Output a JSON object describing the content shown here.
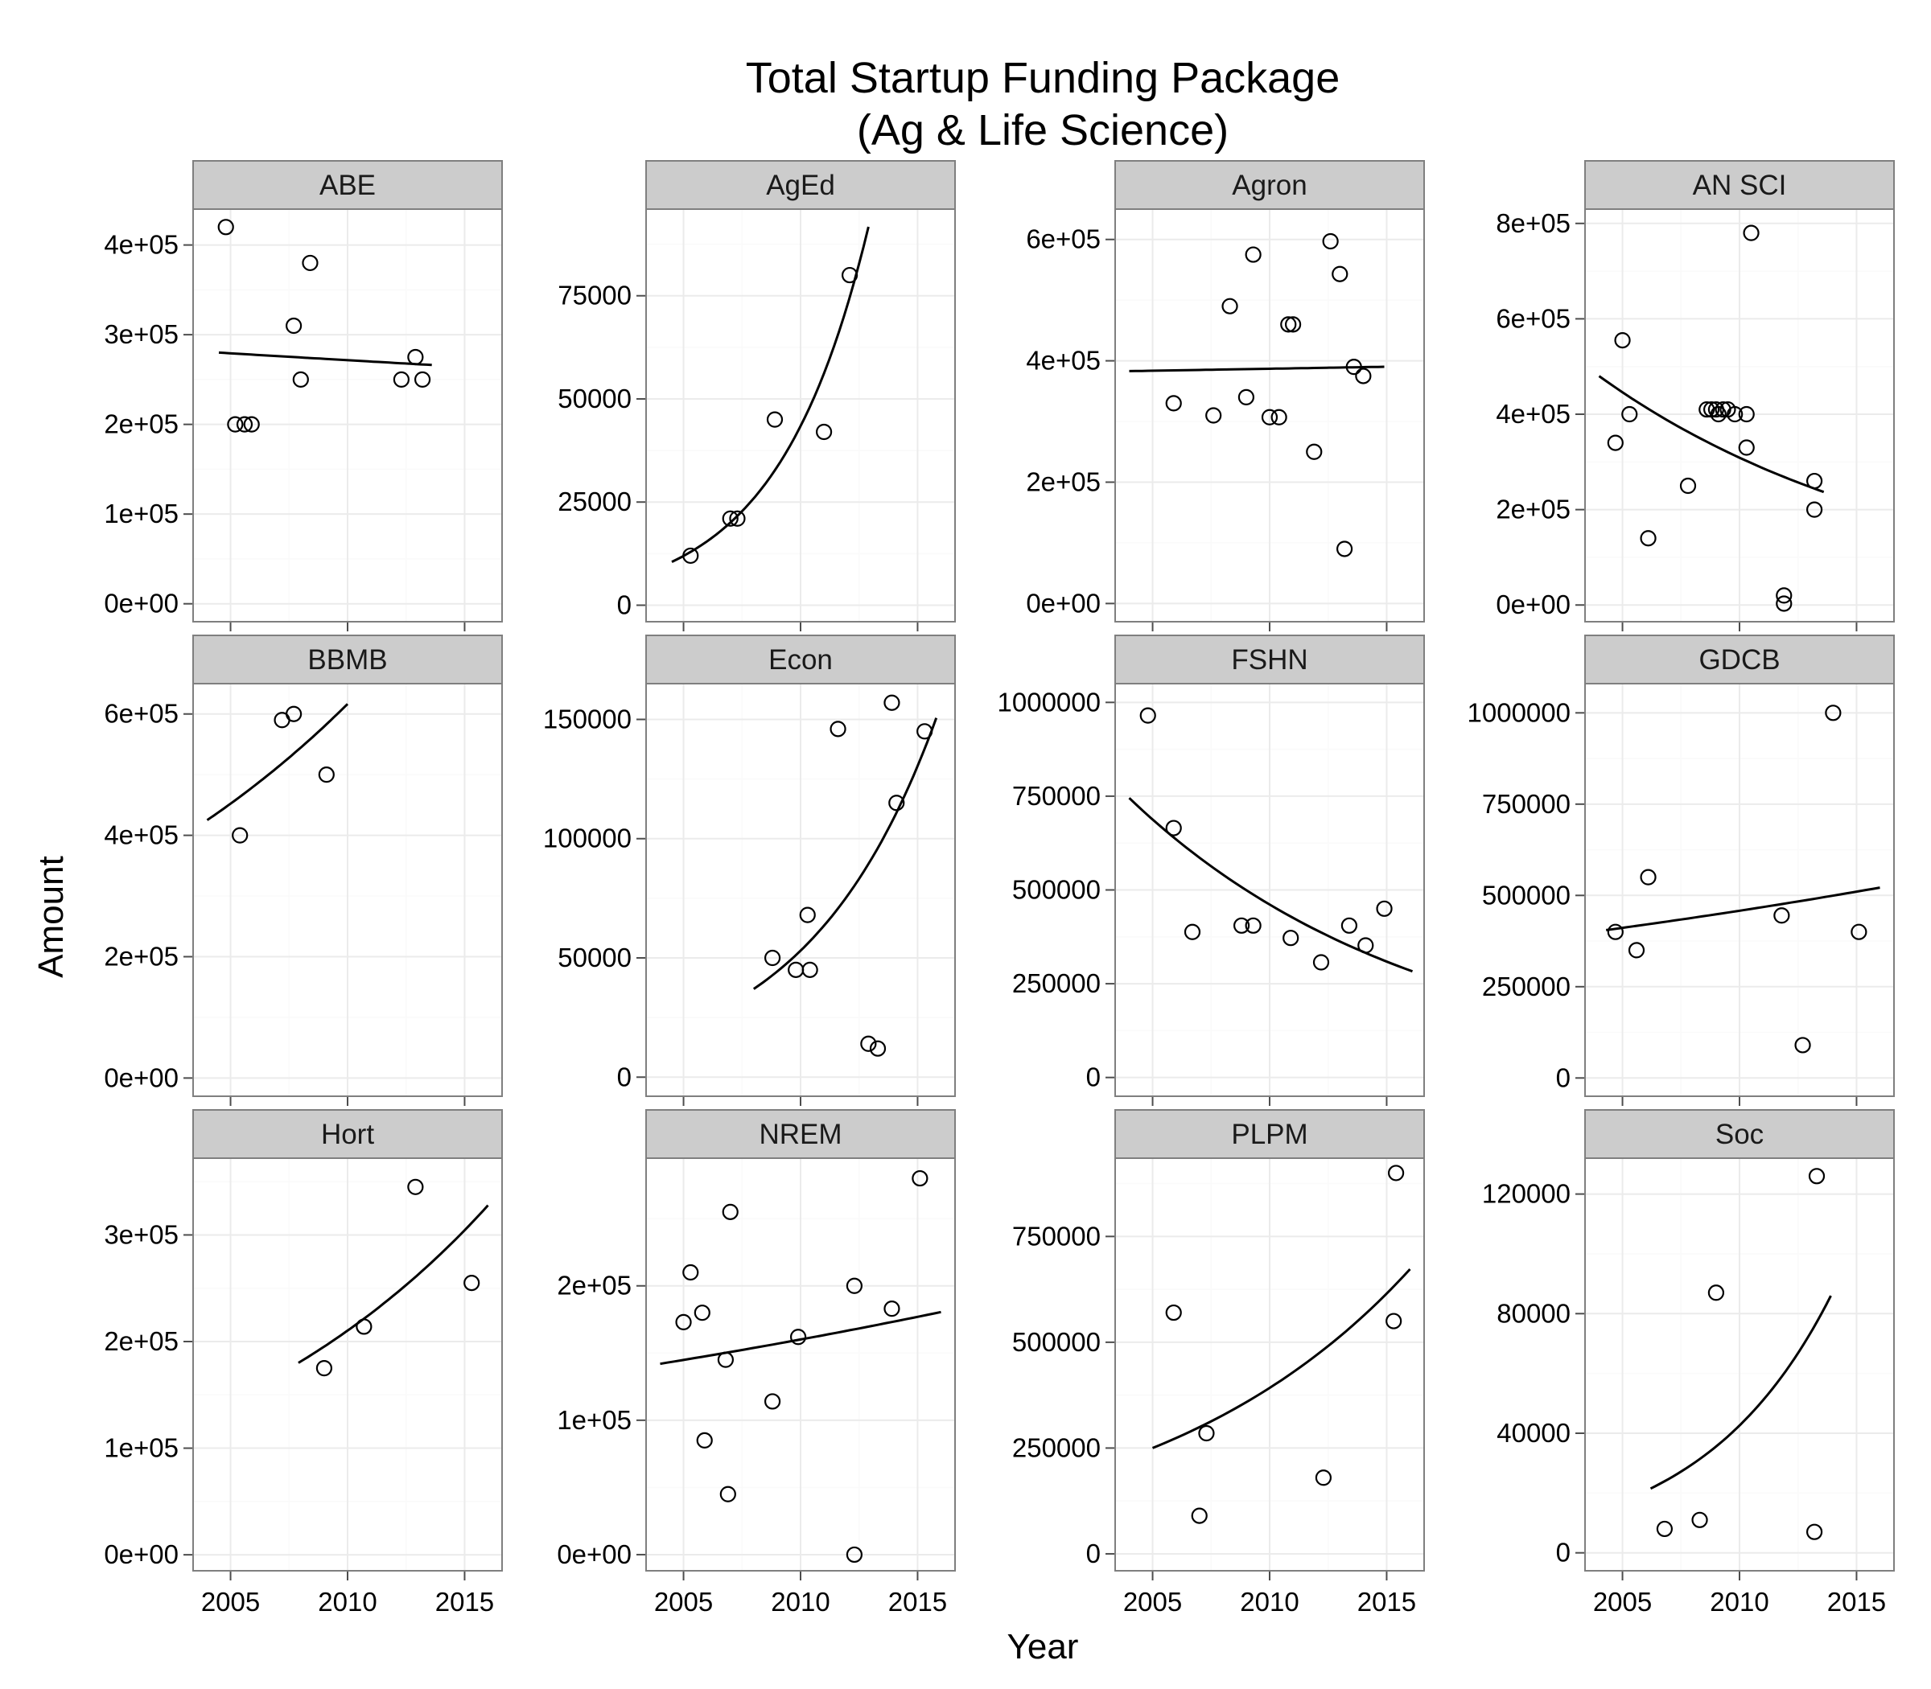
{
  "chart_data": {
    "type": "scatter",
    "title": [
      "Total Startup Funding Package",
      "(Ag & Life Science)"
    ],
    "xlabel": "Year",
    "ylabel": "Amount",
    "xlim": [
      2003.4,
      2016.6
    ],
    "x_ticks": [
      "2005",
      "2010",
      "2015"
    ],
    "grid": true,
    "facets": [
      {
        "name": "ABE",
        "ylim": [
          -20000,
          440000
        ],
        "y_ticks": [
          0,
          100000,
          200000,
          300000,
          400000
        ],
        "y_tick_labels": [
          "0e+00",
          "1e+05",
          "2e+05",
          "3e+05",
          "4e+05"
        ],
        "points": [
          [
            2004.8,
            420000
          ],
          [
            2005.2,
            200000
          ],
          [
            2005.6,
            200000
          ],
          [
            2005.9,
            200000
          ],
          [
            2007.7,
            310000
          ],
          [
            2008.0,
            250000
          ],
          [
            2008.4,
            380000
          ],
          [
            2012.3,
            250000
          ],
          [
            2012.9,
            275000
          ],
          [
            2013.2,
            250000
          ]
        ],
        "trend": {
          "x": [
            2004.5,
            2013.6
          ],
          "y0": 280000,
          "rate": -0.00555
        }
      },
      {
        "name": "AgEd",
        "ylim": [
          -4000,
          96000
        ],
        "y_ticks": [
          0,
          25000,
          50000,
          75000
        ],
        "y_tick_labels": [
          "0",
          "25000",
          "50000",
          "75000"
        ],
        "points": [
          [
            2005.3,
            12000
          ],
          [
            2007.0,
            21000
          ],
          [
            2007.3,
            21000
          ],
          [
            2008.9,
            45000
          ],
          [
            2011.0,
            42000
          ],
          [
            2012.1,
            80000
          ]
        ],
        "trend": {
          "x": [
            2004.5,
            2012.9
          ],
          "y0": 10500,
          "rate": 0.258
        }
      },
      {
        "name": "Agron",
        "ylim": [
          -30000,
          650000
        ],
        "y_ticks": [
          0,
          200000,
          400000,
          600000
        ],
        "y_tick_labels": [
          "0e+00",
          "2e+05",
          "4e+05",
          "6e+05"
        ],
        "points": [
          [
            2005.9,
            330000
          ],
          [
            2007.6,
            310000
          ],
          [
            2008.3,
            490000
          ],
          [
            2009.0,
            340000
          ],
          [
            2009.3,
            575000
          ],
          [
            2010.0,
            307000
          ],
          [
            2010.4,
            307000
          ],
          [
            2010.8,
            460000
          ],
          [
            2011.0,
            460000
          ],
          [
            2011.9,
            250000
          ],
          [
            2012.6,
            597000
          ],
          [
            2013.0,
            543000
          ],
          [
            2013.2,
            90000
          ],
          [
            2013.6,
            390000
          ],
          [
            2014.0,
            375000
          ]
        ],
        "trend": {
          "x": [
            2004.0,
            2014.9
          ],
          "y0": 383000,
          "rate": 0.0017
        }
      },
      {
        "name": "AN SCI",
        "ylim": [
          -35000,
          830000
        ],
        "y_ticks": [
          0,
          200000,
          400000,
          600000,
          800000
        ],
        "y_tick_labels": [
          "0e+00",
          "2e+05",
          "4e+05",
          "6e+05",
          "8e+05"
        ],
        "points": [
          [
            2004.7,
            340000
          ],
          [
            2005.0,
            555000
          ],
          [
            2005.3,
            400000
          ],
          [
            2006.1,
            140000
          ],
          [
            2007.8,
            250000
          ],
          [
            2008.6,
            410000
          ],
          [
            2008.8,
            410000
          ],
          [
            2009.0,
            410000
          ],
          [
            2009.1,
            400000
          ],
          [
            2009.3,
            410000
          ],
          [
            2009.5,
            410000
          ],
          [
            2009.8,
            400000
          ],
          [
            2010.3,
            400000
          ],
          [
            2010.3,
            330000
          ],
          [
            2010.5,
            780000
          ],
          [
            2011.9,
            20000
          ],
          [
            2011.9,
            3000
          ],
          [
            2013.2,
            260000
          ],
          [
            2013.2,
            200000
          ]
        ],
        "trend": {
          "x": [
            2004.0,
            2013.6
          ],
          "y0": 480000,
          "rate": -0.0735
        }
      },
      {
        "name": "BBMB",
        "ylim": [
          -30000,
          650000
        ],
        "y_ticks": [
          0,
          200000,
          400000,
          600000
        ],
        "y_tick_labels": [
          "0e+00",
          "2e+05",
          "4e+05",
          "6e+05"
        ],
        "points": [
          [
            2005.4,
            400000
          ],
          [
            2007.2,
            590000
          ],
          [
            2007.7,
            600000
          ],
          [
            2009.1,
            500000
          ]
        ],
        "trend": {
          "x": [
            2004.0,
            2010.0
          ],
          "y0": 425000,
          "rate": 0.062
        }
      },
      {
        "name": "Econ",
        "ylim": [
          -8000,
          165000
        ],
        "y_ticks": [
          0,
          50000,
          100000,
          150000
        ],
        "y_tick_labels": [
          "0",
          "50000",
          "100000",
          "150000"
        ],
        "points": [
          [
            2008.8,
            50000
          ],
          [
            2009.8,
            45000
          ],
          [
            2010.3,
            68000
          ],
          [
            2010.4,
            45000
          ],
          [
            2011.6,
            146000
          ],
          [
            2012.9,
            14000
          ],
          [
            2013.3,
            12000
          ],
          [
            2013.9,
            157000
          ],
          [
            2014.1,
            115000
          ],
          [
            2015.3,
            145000
          ]
        ],
        "trend": {
          "x": [
            2008.0,
            2015.8
          ],
          "y0": 37000,
          "rate": 0.18
        }
      },
      {
        "name": "FSHN",
        "ylim": [
          -50000,
          1050000
        ],
        "y_ticks": [
          0,
          250000,
          500000,
          750000,
          1000000
        ],
        "y_tick_labels": [
          "0",
          "250000",
          "500000",
          "750000",
          "1000000"
        ],
        "points": [
          [
            2004.8,
            965000
          ],
          [
            2005.9,
            665000
          ],
          [
            2006.7,
            388000
          ],
          [
            2008.8,
            405000
          ],
          [
            2009.3,
            405000
          ],
          [
            2010.9,
            372000
          ],
          [
            2012.2,
            307000
          ],
          [
            2013.4,
            405000
          ],
          [
            2014.1,
            352000
          ],
          [
            2014.9,
            450000
          ]
        ],
        "trend": {
          "x": [
            2004.0,
            2016.1
          ],
          "y0": 745000,
          "rate": -0.08
        }
      },
      {
        "name": "GDCB",
        "ylim": [
          -50000,
          1080000
        ],
        "y_ticks": [
          0,
          250000,
          500000,
          750000,
          1000000
        ],
        "y_tick_labels": [
          "0",
          "250000",
          "500000",
          "750000",
          "1000000"
        ],
        "points": [
          [
            2004.7,
            400000
          ],
          [
            2005.6,
            350000
          ],
          [
            2006.1,
            550000
          ],
          [
            2011.8,
            445000
          ],
          [
            2012.7,
            90000
          ],
          [
            2014.0,
            1000000
          ],
          [
            2015.1,
            400000
          ]
        ],
        "trend": {
          "x": [
            2004.3,
            2016.0
          ],
          "y0": 405000,
          "rate": 0.0216
        }
      },
      {
        "name": "Hort",
        "ylim": [
          -15000,
          372000
        ],
        "y_ticks": [
          0,
          100000,
          200000,
          300000
        ],
        "y_tick_labels": [
          "0e+00",
          "1e+05",
          "2e+05",
          "3e+05"
        ],
        "points": [
          [
            2009.0,
            175000
          ],
          [
            2010.7,
            214000
          ],
          [
            2012.9,
            345000
          ],
          [
            2015.3,
            255000
          ]
        ],
        "trend": {
          "x": [
            2007.9,
            2016.0
          ],
          "y0": 180000,
          "rate": 0.074
        }
      },
      {
        "name": "NREM",
        "ylim": [
          -12000,
          295000
        ],
        "y_ticks": [
          0,
          100000,
          200000
        ],
        "y_tick_labels": [
          "0e+00",
          "1e+05",
          "2e+05"
        ],
        "points": [
          [
            2005.0,
            173000
          ],
          [
            2005.3,
            210000
          ],
          [
            2005.8,
            180000
          ],
          [
            2005.9,
            85000
          ],
          [
            2006.8,
            145000
          ],
          [
            2006.9,
            45000
          ],
          [
            2007.0,
            255000
          ],
          [
            2008.8,
            114000
          ],
          [
            2009.9,
            162000
          ],
          [
            2012.3,
            200000
          ],
          [
            2012.3,
            0
          ],
          [
            2013.9,
            183000
          ],
          [
            2015.1,
            280000
          ]
        ],
        "trend": {
          "x": [
            2004.0,
            2016.0
          ],
          "y0": 142000,
          "rate": 0.02
        }
      },
      {
        "name": "PLPM",
        "ylim": [
          -40000,
          935000
        ],
        "y_ticks": [
          0,
          250000,
          500000,
          750000
        ],
        "y_tick_labels": [
          "0",
          "250000",
          "500000",
          "750000"
        ],
        "points": [
          [
            2005.9,
            570000
          ],
          [
            2007.0,
            90000
          ],
          [
            2007.3,
            285000
          ],
          [
            2012.3,
            180000
          ],
          [
            2015.3,
            550000
          ],
          [
            2015.4,
            900000
          ]
        ],
        "trend": {
          "x": [
            2005.0,
            2016.0
          ],
          "y0": 250000,
          "rate": 0.09
        }
      },
      {
        "name": "Soc",
        "ylim": [
          -6000,
          132000
        ],
        "y_ticks": [
          0,
          40000,
          80000,
          120000
        ],
        "y_tick_labels": [
          "0",
          "40000",
          "80000",
          "120000"
        ],
        "points": [
          [
            2006.8,
            8000
          ],
          [
            2008.3,
            11000
          ],
          [
            2009.0,
            87000
          ],
          [
            2013.2,
            7000
          ],
          [
            2013.3,
            126000
          ]
        ],
        "trend": {
          "x": [
            2006.2,
            2013.9
          ],
          "y0": 21500,
          "rate": 0.18
        }
      }
    ]
  }
}
